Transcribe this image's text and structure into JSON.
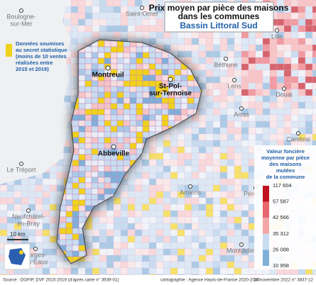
{
  "title": [
    "Prix moyen par pièce des maisons",
    "dans les communes"
  ],
  "subtitle": "Bassin Littoral Sud",
  "secret_note": [
    "Données soumises",
    "au secret statistique",
    "(moins de 10 ventes",
    "réalisées entre",
    "2015 et 2019)"
  ],
  "legend": {
    "title": [
      "Valeur foncière",
      "moyenne par pièce",
      "des maisons",
      "mutées",
      "de la commune"
    ],
    "labels": [
      "117 604",
      "57 587",
      "42 566",
      "35 312",
      "26 088",
      "10 958"
    ]
  },
  "cities": [
    {
      "lines": [
        "Boulogne-",
        "sur-Mer"
      ]
    },
    {
      "lines": [
        "Saint-Omer"
      ]
    },
    {
      "lines": [
        "Lille"
      ]
    },
    {
      "lines": [
        "Béthune"
      ]
    },
    {
      "lines": [
        "Lens"
      ]
    },
    {
      "lines": [
        "Douai"
      ]
    },
    {
      "lines": [
        "Arras"
      ]
    },
    {
      "lines": [
        "Cambrai"
      ]
    },
    {
      "lines": [
        "Montreuil"
      ]
    },
    {
      "lines": [
        "St-Pol-",
        "sur-Ternoise"
      ]
    },
    {
      "lines": [
        "Abbeville"
      ]
    },
    {
      "lines": [
        "Le Tréport"
      ]
    },
    {
      "lines": [
        "Amiens"
      ]
    },
    {
      "lines": [
        "Péronne"
      ]
    },
    {
      "lines": [
        "Neufchâtel-",
        "en-Bray"
      ]
    },
    {
      "lines": [
        "Forges-",
        "les-Eaux"
      ]
    },
    {
      "lines": [
        "Montdidier"
      ]
    }
  ],
  "scale": "10 km",
  "footer": {
    "source": "Source : DGFIP, DVF 2015-2019 (d'après carte n° 3939-01)",
    "credit": "cartographie : Agence Hauts-de-France 2020-2040",
    "date": "24 novembre 2022 n° 3837-12"
  }
}
